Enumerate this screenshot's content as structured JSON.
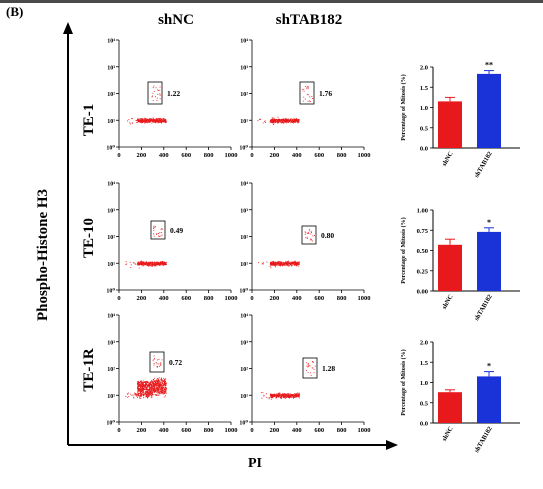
{
  "panel_label": "(B)",
  "columns": [
    "shNC",
    "shTAB182"
  ],
  "rows": [
    "TE-1",
    "TE-10",
    "TE-1R"
  ],
  "y_axis_label": "Phospho-Histone H3",
  "x_axis_label": "PI",
  "colors": {
    "dots": "#e8191c",
    "bar_shNC": "#e8191c",
    "bar_shTAB182": "#1a33d9",
    "axis": "#000000"
  },
  "chart_data": [
    {
      "type": "scatter",
      "row": "TE-1",
      "group": "shNC",
      "gate_percent": "1.22",
      "xlim": [
        0,
        1000
      ],
      "xticks": [
        "0",
        "200",
        "400",
        "600",
        "800",
        "1000"
      ],
      "ylim_log10": [
        0,
        4
      ],
      "yticks": [
        "10⁰",
        "10¹",
        "10²",
        "10³",
        "10⁴"
      ]
    },
    {
      "type": "scatter",
      "row": "TE-1",
      "group": "shTAB182",
      "gate_percent": "1.76",
      "xlim": [
        0,
        1000
      ],
      "xticks": [
        "0",
        "200",
        "400",
        "600",
        "800",
        "1000"
      ],
      "ylim_log10": [
        0,
        4
      ],
      "yticks": [
        "10⁰",
        "10¹",
        "10²",
        "10³",
        "10⁴"
      ]
    },
    {
      "type": "bar",
      "row": "TE-1",
      "categories": [
        "shNC",
        "shTAB182"
      ],
      "values": [
        1.15,
        1.83
      ],
      "errors": [
        0.1,
        0.08
      ],
      "significance": [
        "",
        "**"
      ],
      "ylabel": "Percentage of Mitosis (%)",
      "ylim": [
        0,
        2.0
      ],
      "yticks": [
        "0.0",
        "0.5",
        "1.0",
        "1.5",
        "2.0"
      ]
    },
    {
      "type": "scatter",
      "row": "TE-10",
      "group": "shNC",
      "gate_percent": "0.49",
      "xlim": [
        0,
        1000
      ],
      "xticks": [
        "0",
        "200",
        "400",
        "600",
        "800",
        "1000"
      ],
      "ylim_log10": [
        0,
        4
      ],
      "yticks": [
        "10⁰",
        "10¹",
        "10²",
        "10³",
        "10⁴"
      ]
    },
    {
      "type": "scatter",
      "row": "TE-10",
      "group": "shTAB182",
      "gate_percent": "0.80",
      "xlim": [
        0,
        1000
      ],
      "xticks": [
        "0",
        "200",
        "400",
        "600",
        "800",
        "1000"
      ],
      "ylim_log10": [
        0,
        4
      ],
      "yticks": [
        "10⁰",
        "10¹",
        "10²",
        "10³",
        "10⁴"
      ]
    },
    {
      "type": "bar",
      "row": "TE-10",
      "categories": [
        "shNC",
        "shTAB182"
      ],
      "values": [
        0.57,
        0.73
      ],
      "errors": [
        0.07,
        0.05
      ],
      "significance": [
        "",
        "*"
      ],
      "ylabel": "Percentage of Mitosis (%)",
      "ylim": [
        0,
        1.0
      ],
      "yticks": [
        "0.00",
        "0.25",
        "0.50",
        "0.75",
        "1.00"
      ]
    },
    {
      "type": "scatter",
      "row": "TE-1R",
      "group": "shNC",
      "gate_percent": "0.72",
      "xlim": [
        0,
        1000
      ],
      "xticks": [
        "0",
        "200",
        "400",
        "600",
        "800",
        "1000"
      ],
      "ylim_log10": [
        0,
        4
      ],
      "yticks": [
        "10⁰",
        "10¹",
        "10²",
        "10³",
        "10⁴"
      ]
    },
    {
      "type": "scatter",
      "row": "TE-1R",
      "group": "shTAB182",
      "gate_percent": "1.28",
      "xlim": [
        0,
        1000
      ],
      "xticks": [
        "0",
        "200",
        "400",
        "600",
        "800",
        "1000"
      ],
      "ylim_log10": [
        0,
        4
      ],
      "yticks": [
        "10⁰",
        "10¹",
        "10²",
        "10³",
        "10⁴"
      ]
    },
    {
      "type": "bar",
      "row": "TE-1R",
      "categories": [
        "shNC",
        "shTAB182"
      ],
      "values": [
        0.76,
        1.15
      ],
      "errors": [
        0.06,
        0.12
      ],
      "significance": [
        "",
        "*"
      ],
      "ylabel": "Percentage of Mitosis (%)",
      "ylim": [
        0,
        2.0
      ],
      "yticks": [
        "0.0",
        "0.5",
        "1.0",
        "1.5",
        "2.0"
      ]
    }
  ]
}
